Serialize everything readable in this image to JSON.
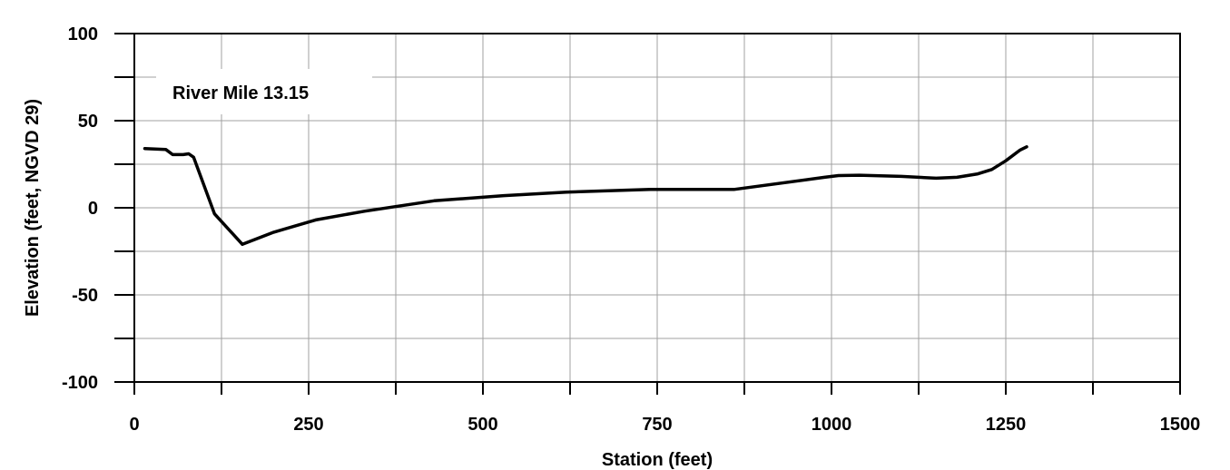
{
  "chart_data": {
    "type": "line",
    "title": "",
    "xlabel": "Station (feet)",
    "ylabel": "Elevation (feet, NGVD 29)",
    "xlim": [
      0,
      1500
    ],
    "ylim": [
      -100,
      100
    ],
    "xticks": [
      0,
      250,
      500,
      750,
      1000,
      1250,
      1500
    ],
    "yticks": [
      -100,
      -50,
      0,
      50,
      100
    ],
    "x_tick_labels": [
      "0",
      "250",
      "500",
      "750",
      "1000",
      "1250",
      "1500"
    ],
    "y_tick_labels": [
      "-100",
      "-50",
      "0",
      "50",
      "100"
    ],
    "grid": true,
    "annotation": "River Mile 13.15",
    "series": [
      {
        "color": "#000000",
        "points": [
          [
            15,
            34
          ],
          [
            45,
            33.5
          ],
          [
            55,
            30.5
          ],
          [
            70,
            30.5
          ],
          [
            78,
            31
          ],
          [
            85,
            29
          ],
          [
            115,
            -3.5
          ],
          [
            155,
            -21
          ],
          [
            200,
            -14
          ],
          [
            260,
            -7
          ],
          [
            330,
            -2
          ],
          [
            430,
            4
          ],
          [
            530,
            7
          ],
          [
            620,
            9
          ],
          [
            740,
            10.5
          ],
          [
            860,
            10.5
          ],
          [
            990,
            17.5
          ],
          [
            1010,
            18.5
          ],
          [
            1040,
            18.7
          ],
          [
            1100,
            18
          ],
          [
            1150,
            17
          ],
          [
            1180,
            17.5
          ],
          [
            1210,
            19.5
          ],
          [
            1230,
            22
          ],
          [
            1250,
            27
          ],
          [
            1270,
            33
          ],
          [
            1280,
            35
          ]
        ]
      }
    ]
  }
}
